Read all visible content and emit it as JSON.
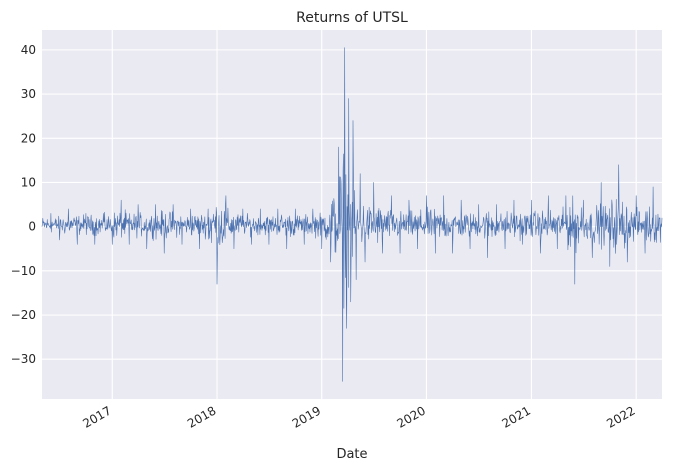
{
  "chart_data": {
    "type": "line",
    "title": "Returns of UTSL",
    "xlabel": "Date",
    "ylabel": "",
    "xlim": [
      "2016-05-01",
      "2022-04-01"
    ],
    "ylim": [
      -39,
      44.5
    ],
    "yticks": [
      -30,
      -20,
      -10,
      0,
      10,
      20,
      30,
      40
    ],
    "xticks": [
      "2017",
      "2018",
      "2019",
      "2020",
      "2021",
      "2022"
    ],
    "grid": true,
    "legend": "none",
    "series": [
      {
        "color": "#4c72b0",
        "note_values_are_approximate": true,
        "points": [
          [
            "2016-05-01",
            0
          ],
          [
            "2016-06-01",
            3
          ],
          [
            "2016-07-01",
            -3
          ],
          [
            "2016-08-01",
            4
          ],
          [
            "2016-09-01",
            -4
          ],
          [
            "2016-10-01",
            3
          ],
          [
            "2016-11-01",
            -4
          ],
          [
            "2016-12-01",
            3
          ],
          [
            "2017-01-01",
            -4
          ],
          [
            "2017-02-01",
            6
          ],
          [
            "2017-03-01",
            -4
          ],
          [
            "2017-04-01",
            5
          ],
          [
            "2017-05-01",
            -5
          ],
          [
            "2017-06-01",
            5
          ],
          [
            "2017-07-01",
            -6
          ],
          [
            "2017-08-01",
            5
          ],
          [
            "2017-09-01",
            -4
          ],
          [
            "2017-10-01",
            4
          ],
          [
            "2017-11-01",
            -5
          ],
          [
            "2017-12-01",
            4
          ],
          [
            "2018-01-01",
            -13
          ],
          [
            "2018-02-01",
            7
          ],
          [
            "2018-03-01",
            -5
          ],
          [
            "2018-04-01",
            4
          ],
          [
            "2018-05-01",
            -4
          ],
          [
            "2018-06-01",
            4
          ],
          [
            "2018-07-01",
            -4
          ],
          [
            "2018-08-01",
            4
          ],
          [
            "2018-09-01",
            -5
          ],
          [
            "2018-10-01",
            4
          ],
          [
            "2018-11-01",
            -4
          ],
          [
            "2018-12-01",
            4
          ],
          [
            "2019-01-01",
            -5
          ],
          [
            "2019-02-01",
            -8
          ],
          [
            "2019-03-01",
            18
          ],
          [
            "2019-03-15",
            -35
          ],
          [
            "2019-03-22",
            40.5
          ],
          [
            "2019-03-29",
            -23
          ],
          [
            "2019-04-05",
            29
          ],
          [
            "2019-04-12",
            -17
          ],
          [
            "2019-04-20",
            24
          ],
          [
            "2019-05-01",
            -12
          ],
          [
            "2019-05-15",
            12
          ],
          [
            "2019-06-01",
            -8
          ],
          [
            "2019-07-01",
            10
          ],
          [
            "2019-08-01",
            -6
          ],
          [
            "2019-09-01",
            7
          ],
          [
            "2019-10-01",
            -6
          ],
          [
            "2019-11-01",
            6
          ],
          [
            "2019-12-01",
            -5
          ],
          [
            "2020-01-01",
            7
          ],
          [
            "2020-02-01",
            -6
          ],
          [
            "2020-03-01",
            7
          ],
          [
            "2020-04-01",
            -6
          ],
          [
            "2020-05-01",
            6
          ],
          [
            "2020-06-01",
            -5
          ],
          [
            "2020-07-01",
            5
          ],
          [
            "2020-08-01",
            -7
          ],
          [
            "2020-09-01",
            5
          ],
          [
            "2020-10-01",
            -5
          ],
          [
            "2020-11-01",
            6
          ],
          [
            "2020-12-01",
            -4
          ],
          [
            "2021-01-01",
            6
          ],
          [
            "2021-02-01",
            -6
          ],
          [
            "2021-03-01",
            7
          ],
          [
            "2021-04-01",
            -5
          ],
          [
            "2021-05-01",
            7
          ],
          [
            "2021-06-01",
            -13
          ],
          [
            "2021-07-01",
            6
          ],
          [
            "2021-08-01",
            -7
          ],
          [
            "2021-09-01",
            10
          ],
          [
            "2021-10-01",
            -9
          ],
          [
            "2021-11-01",
            14
          ],
          [
            "2021-12-01",
            -8
          ],
          [
            "2022-01-01",
            7
          ],
          [
            "2022-02-01",
            -6
          ],
          [
            "2022-03-01",
            9
          ],
          [
            "2022-04-01",
            2
          ]
        ]
      }
    ]
  }
}
